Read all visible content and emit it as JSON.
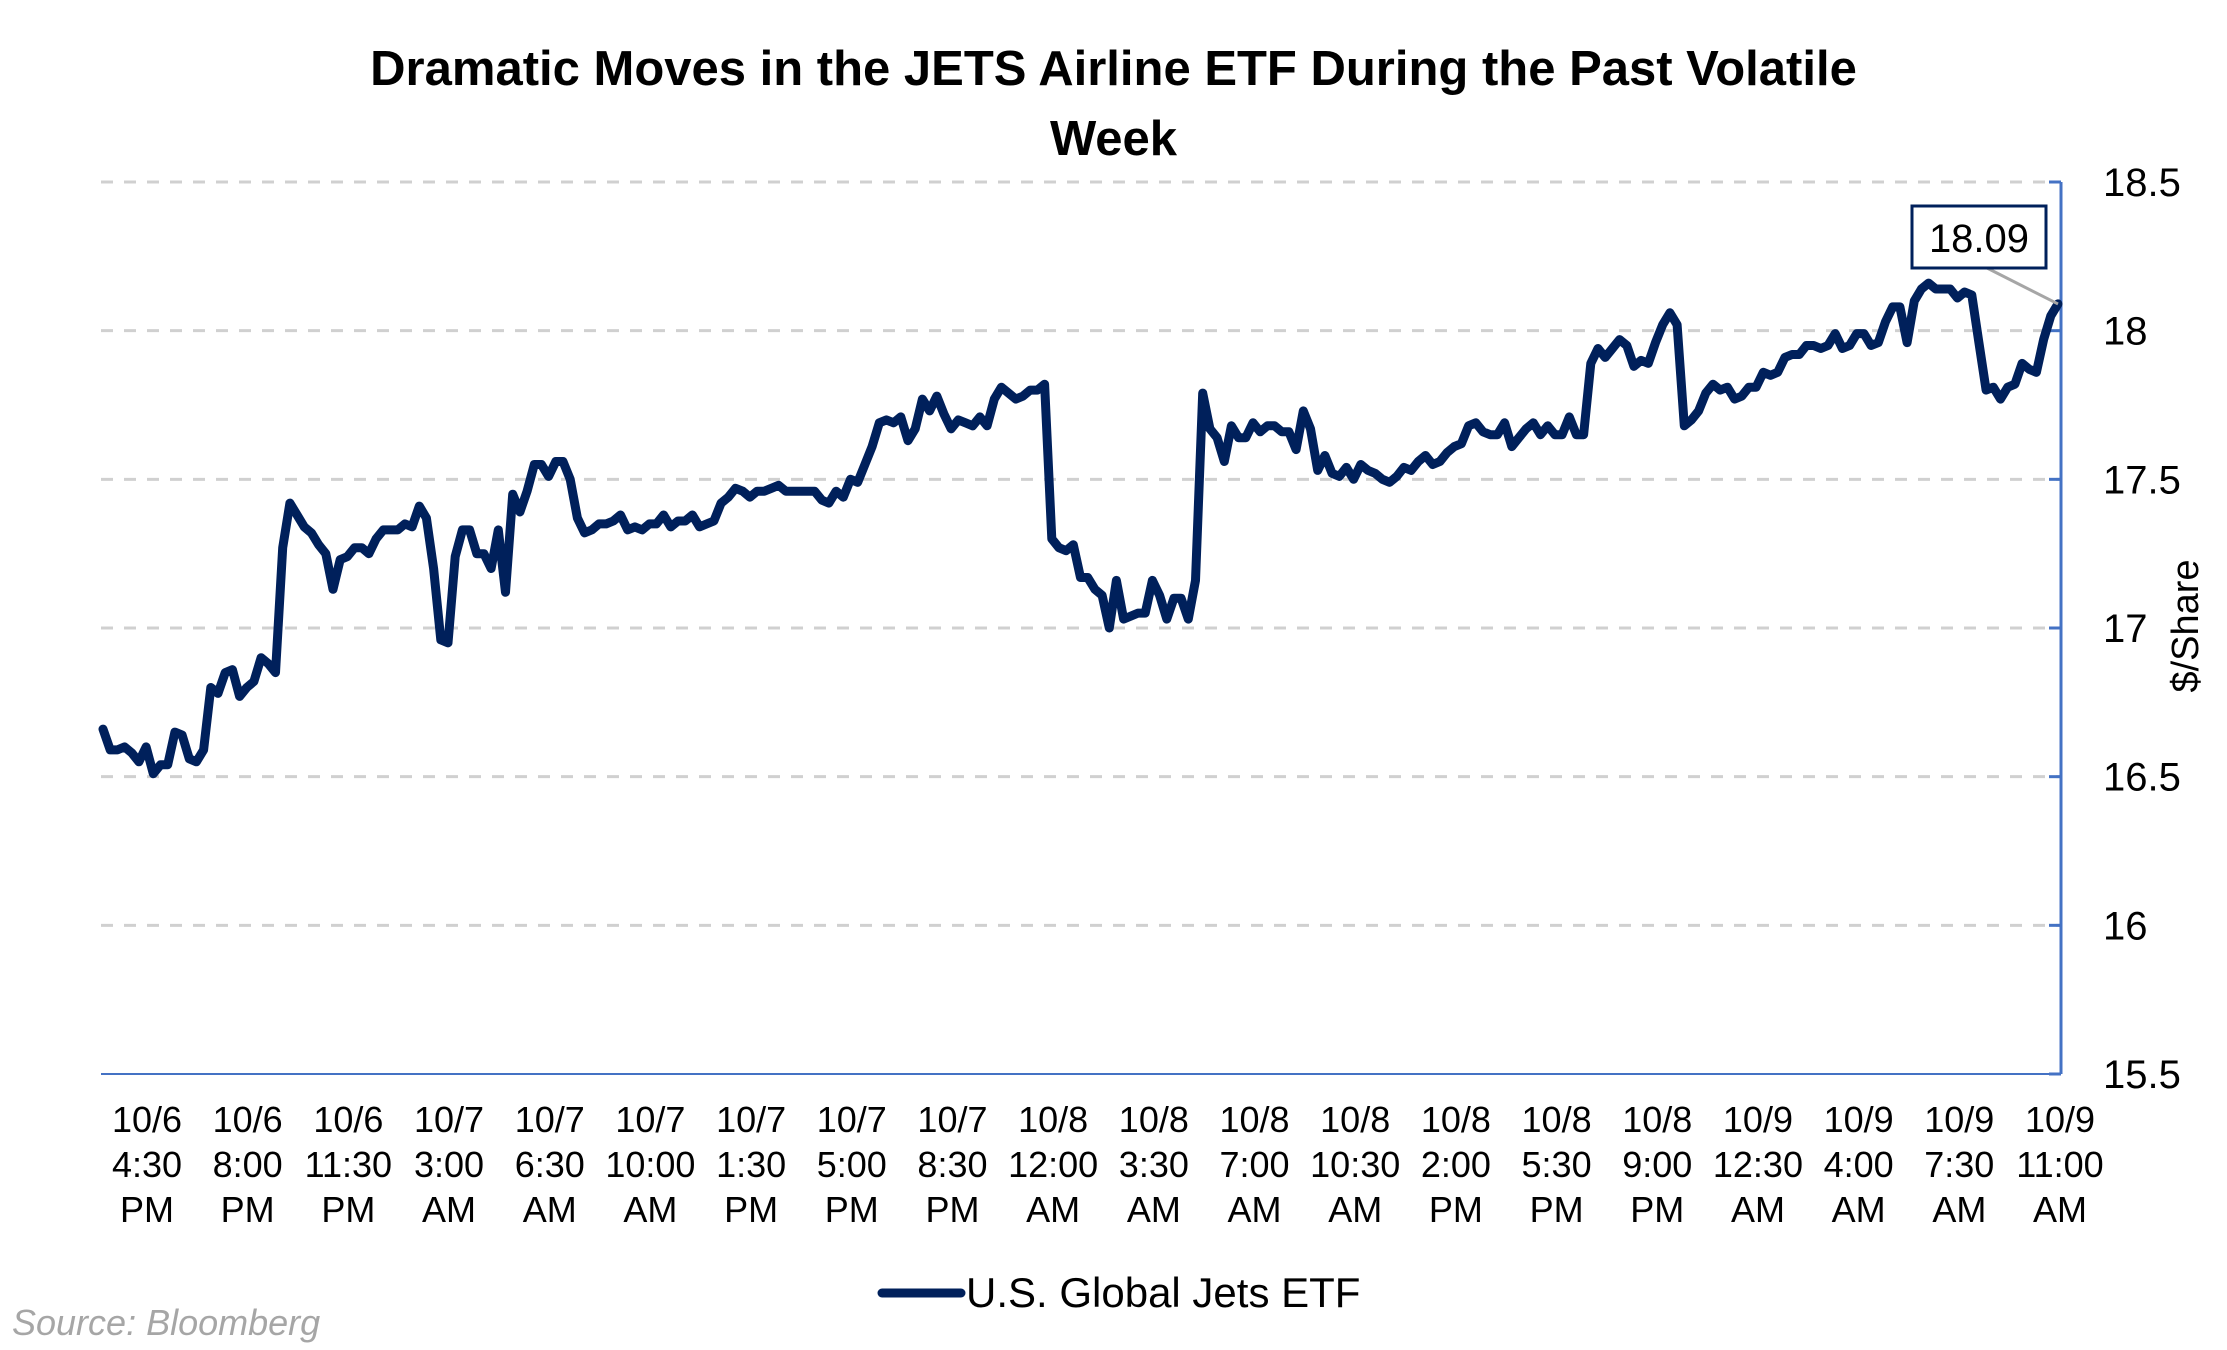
{
  "chart_data": {
    "type": "line",
    "title": "Dramatic Moves in the JETS Airline ETF During the Past Volatile Week",
    "title_lines": [
      "Dramatic Moves in the JETS Airline ETF During the Past Volatile",
      "Week"
    ],
    "xlabel": "",
    "ylabel": "$/Share",
    "ylim": [
      15.5,
      18.5
    ],
    "yticks": [
      15.5,
      16,
      16.5,
      17,
      17.5,
      18,
      18.5
    ],
    "ytick_labels": [
      "15.5",
      "16",
      "16.5",
      "17",
      "17.5",
      "18",
      "18.5"
    ],
    "y_axis_side": "right",
    "grid": "horizontal-dashed",
    "x_tick_labels": [
      [
        "10/6",
        "4:30",
        "PM"
      ],
      [
        "10/6",
        "8:00",
        "PM"
      ],
      [
        "10/6",
        "11:30",
        "PM"
      ],
      [
        "10/7",
        "3:00",
        "AM"
      ],
      [
        "10/7",
        "6:30",
        "AM"
      ],
      [
        "10/7",
        "10:00",
        "AM"
      ],
      [
        "10/7",
        "1:30",
        "PM"
      ],
      [
        "10/7",
        "5:00",
        "PM"
      ],
      [
        "10/7",
        "8:30",
        "PM"
      ],
      [
        "10/8",
        "12:00",
        "AM"
      ],
      [
        "10/8",
        "3:30",
        "AM"
      ],
      [
        "10/8",
        "7:00",
        "AM"
      ],
      [
        "10/8",
        "10:30",
        "AM"
      ],
      [
        "10/8",
        "2:00",
        "PM"
      ],
      [
        "10/8",
        "5:30",
        "PM"
      ],
      [
        "10/8",
        "9:00",
        "PM"
      ],
      [
        "10/9",
        "12:30",
        "AM"
      ],
      [
        "10/9",
        "4:00",
        "AM"
      ],
      [
        "10/9",
        "7:30",
        "AM"
      ],
      [
        "10/9",
        "11:00",
        "AM"
      ]
    ],
    "legend": "bottom-center",
    "series": [
      {
        "name": "U.S. Global Jets ETF",
        "color": "#00205b",
        "values": [
          16.66,
          16.59,
          16.59,
          16.6,
          16.58,
          16.55,
          16.6,
          16.51,
          16.54,
          16.54,
          16.65,
          16.64,
          16.56,
          16.55,
          16.59,
          16.8,
          16.78,
          16.85,
          16.86,
          16.77,
          16.8,
          16.82,
          16.9,
          16.88,
          16.85,
          17.27,
          17.42,
          17.38,
          17.34,
          17.32,
          17.28,
          17.25,
          17.13,
          17.23,
          17.24,
          17.27,
          17.27,
          17.25,
          17.3,
          17.33,
          17.33,
          17.33,
          17.35,
          17.34,
          17.41,
          17.37,
          17.2,
          16.96,
          16.95,
          17.24,
          17.33,
          17.33,
          17.25,
          17.25,
          17.2,
          17.33,
          17.12,
          17.45,
          17.39,
          17.46,
          17.55,
          17.55,
          17.51,
          17.56,
          17.56,
          17.5,
          17.37,
          17.32,
          17.33,
          17.35,
          17.35,
          17.36,
          17.38,
          17.33,
          17.34,
          17.33,
          17.35,
          17.35,
          17.38,
          17.34,
          17.36,
          17.36,
          17.38,
          17.34,
          17.35,
          17.36,
          17.42,
          17.44,
          17.47,
          17.46,
          17.44,
          17.46,
          17.46,
          17.47,
          17.48,
          17.46,
          17.46,
          17.46,
          17.46,
          17.46,
          17.43,
          17.42,
          17.46,
          17.44,
          17.5,
          17.49,
          17.55,
          17.61,
          17.69,
          17.7,
          17.69,
          17.71,
          17.63,
          17.67,
          17.77,
          17.73,
          17.78,
          17.72,
          17.67,
          17.7,
          17.69,
          17.68,
          17.71,
          17.68,
          17.77,
          17.81,
          17.79,
          17.77,
          17.78,
          17.8,
          17.8,
          17.82,
          17.3,
          17.27,
          17.26,
          17.28,
          17.17,
          17.17,
          17.13,
          17.11,
          17.0,
          17.16,
          17.03,
          17.04,
          17.05,
          17.05,
          17.16,
          17.11,
          17.03,
          17.1,
          17.1,
          17.03,
          17.16,
          17.79,
          17.67,
          17.64,
          17.56,
          17.68,
          17.64,
          17.64,
          17.69,
          17.66,
          17.68,
          17.68,
          17.66,
          17.66,
          17.6,
          17.73,
          17.67,
          17.53,
          17.58,
          17.52,
          17.51,
          17.54,
          17.5,
          17.55,
          17.53,
          17.52,
          17.5,
          17.49,
          17.51,
          17.54,
          17.53,
          17.56,
          17.58,
          17.55,
          17.56,
          17.59,
          17.61,
          17.62,
          17.68,
          17.69,
          17.66,
          17.65,
          17.65,
          17.69,
          17.61,
          17.64,
          17.67,
          17.69,
          17.65,
          17.68,
          17.65,
          17.65,
          17.71,
          17.65,
          17.65,
          17.89,
          17.94,
          17.91,
          17.94,
          17.97,
          17.95,
          17.88,
          17.9,
          17.89,
          17.96,
          18.02,
          18.06,
          18.02,
          17.68,
          17.7,
          17.73,
          17.79,
          17.82,
          17.8,
          17.81,
          17.77,
          17.78,
          17.81,
          17.81,
          17.86,
          17.85,
          17.86,
          17.91,
          17.92,
          17.92,
          17.95,
          17.95,
          17.94,
          17.95,
          17.99,
          17.94,
          17.95,
          17.99,
          17.99,
          17.95,
          17.96,
          18.03,
          18.08,
          18.08,
          17.96,
          18.1,
          18.14,
          18.16,
          18.14,
          18.14,
          18.14,
          18.11,
          18.13,
          18.12,
          17.96,
          17.8,
          17.81,
          17.77,
          17.81,
          17.82,
          17.89,
          17.87,
          17.86,
          17.97,
          18.05,
          18.09
        ]
      }
    ],
    "annotations": [
      {
        "text": "18.09",
        "type": "callout",
        "target": "last-point"
      }
    ],
    "source": "Source: Bloomberg"
  }
}
